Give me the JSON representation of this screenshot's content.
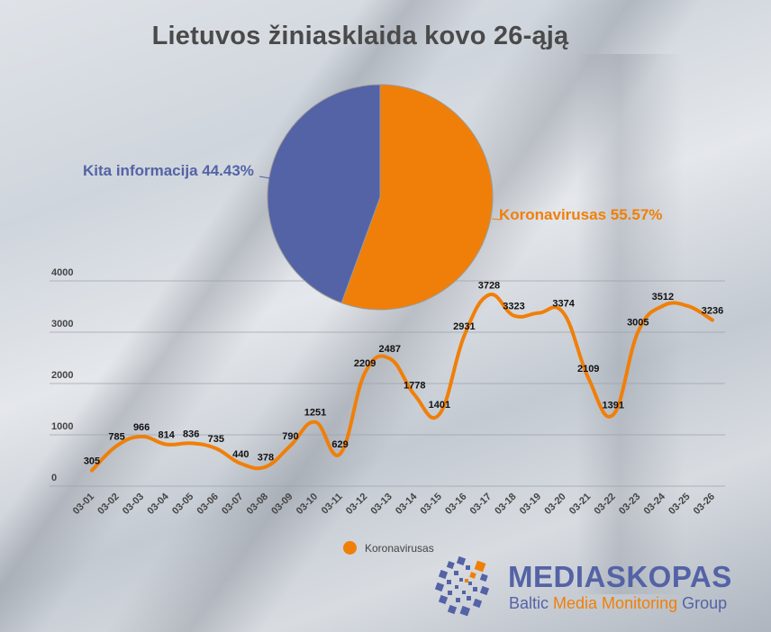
{
  "title": "Lietuvos žiniasklaida kovo 26-ąją",
  "pie": {
    "labels": {
      "kita": "Kita informacija 44.43%",
      "koronavirusas": "Koronavirusas 55.57%"
    }
  },
  "legend": {
    "series_label": "Koronavirusas"
  },
  "logo": {
    "name": "MEDIASKOPAS",
    "tagline_part1": "Baltic ",
    "tagline_accent": "Media Monitoring",
    "tagline_part2": " Group"
  },
  "colors": {
    "orange": "#f07f09",
    "blue": "#5463a6",
    "text_dark": "#4a4a4a",
    "gridline": "#9aa0a8"
  },
  "chart_data": [
    {
      "type": "pie",
      "title": "Lietuvos žiniasklaida kovo 26-ąją",
      "categories": [
        "Koronavirusas",
        "Kita informacija"
      ],
      "values": [
        55.57,
        44.43
      ],
      "colors": [
        "#f07f09",
        "#5463a6"
      ],
      "labels": [
        "Koronavirusas 55.57%",
        "Kita informacija 44.43%"
      ]
    },
    {
      "type": "line",
      "title": "",
      "xlabel": "",
      "ylabel": "",
      "ylim": [
        0,
        4000
      ],
      "yticks": [
        0,
        1000,
        2000,
        3000,
        4000
      ],
      "grid": true,
      "legend_position": "bottom",
      "categories": [
        "03-01",
        "03-02",
        "03-03",
        "03-04",
        "03-05",
        "03-06",
        "03-07",
        "03-08",
        "03-09",
        "03-10",
        "03-11",
        "03-12",
        "03-13",
        "03-14",
        "03-15",
        "03-16",
        "03-17",
        "03-18",
        "03-19",
        "03-20",
        "03-21",
        "03-22",
        "03-23",
        "03-24",
        "03-25",
        "03-26"
      ],
      "series": [
        {
          "name": "Koronavirusas",
          "color": "#f07f09",
          "values": [
            305,
            785,
            966,
            814,
            836,
            735,
            440,
            378,
            790,
            1251,
            629,
            2209,
            2487,
            1778,
            1401,
            2931,
            3728,
            3323,
            3374,
            3374,
            2109,
            1391,
            3005,
            3512,
            3512,
            3236
          ],
          "data_labels": [
            "305",
            "785",
            "966",
            "814",
            "836",
            "735",
            "440",
            "378",
            "790",
            "1251",
            "629",
            "2209",
            "2487",
            "1778",
            "1401",
            "2931",
            "3728",
            "3323",
            "",
            "3374",
            "2109",
            "1391",
            "3005",
            "3512",
            "",
            "3236"
          ]
        }
      ]
    }
  ]
}
